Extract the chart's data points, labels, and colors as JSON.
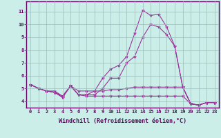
{
  "xlabel": "Windchill (Refroidissement éolien,°C)",
  "ylabel": "",
  "background_color": "#cceee8",
  "grid_color": "#99bbbb",
  "line_color": "#993399",
  "x_ticks": [
    0,
    1,
    2,
    3,
    4,
    5,
    6,
    7,
    8,
    9,
    10,
    11,
    12,
    13,
    14,
    15,
    16,
    17,
    18,
    19,
    20,
    21,
    22,
    23
  ],
  "y_ticks": [
    4,
    5,
    6,
    7,
    8,
    9,
    10,
    11
  ],
  "ylim": [
    3.5,
    11.8
  ],
  "xlim": [
    -0.5,
    23.5
  ],
  "series": [
    [
      5.3,
      5.0,
      4.8,
      4.8,
      4.4,
      5.2,
      4.5,
      4.5,
      4.8,
      5.8,
      6.5,
      6.8,
      7.5,
      9.3,
      11.1,
      10.7,
      10.8,
      9.8,
      8.3,
      5.1,
      3.8,
      3.7,
      3.9,
      3.9
    ],
    [
      5.3,
      5.0,
      4.8,
      4.7,
      4.4,
      5.2,
      4.5,
      4.5,
      4.5,
      5.0,
      5.8,
      5.8,
      7.0,
      7.5,
      9.0,
      10.0,
      9.8,
      9.2,
      8.3,
      5.1,
      3.8,
      3.7,
      3.9,
      3.9
    ],
    [
      5.3,
      5.0,
      4.8,
      4.7,
      4.3,
      5.2,
      4.8,
      4.8,
      4.8,
      4.8,
      4.9,
      4.9,
      5.0,
      5.1,
      5.1,
      5.1,
      5.1,
      5.1,
      5.1,
      5.1,
      3.8,
      3.7,
      3.9,
      3.9
    ],
    [
      5.3,
      5.0,
      4.8,
      4.7,
      4.3,
      5.2,
      4.5,
      4.4,
      4.4,
      4.4,
      4.4,
      4.4,
      4.4,
      4.4,
      4.4,
      4.4,
      4.4,
      4.4,
      4.4,
      4.4,
      3.8,
      3.7,
      3.9,
      3.9
    ]
  ],
  "marker": "*",
  "markersize": 3,
  "linewidth": 0.8,
  "tick_fontsize": 5,
  "label_fontsize": 6,
  "xtick_fontsize": 5
}
